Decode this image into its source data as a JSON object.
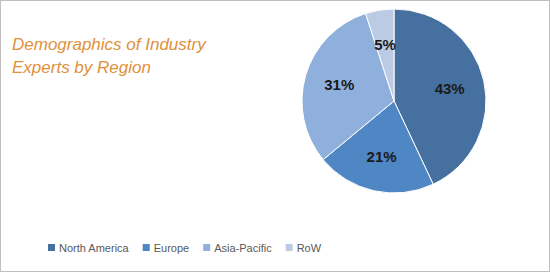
{
  "chart_data": {
    "type": "pie",
    "title": "Demographics of Industry Experts by Region",
    "categories": [
      "North America",
      "Europe",
      "Asia-Pacific",
      "RoW"
    ],
    "values": [
      43,
      21,
      31,
      5
    ],
    "value_labels": [
      "43%",
      "21%",
      "31%",
      "5%"
    ],
    "colors": [
      "#45709f",
      "#4f86c4",
      "#8fb0dc",
      "#bccbe4"
    ],
    "data_labels": true,
    "legend": "bottom"
  }
}
